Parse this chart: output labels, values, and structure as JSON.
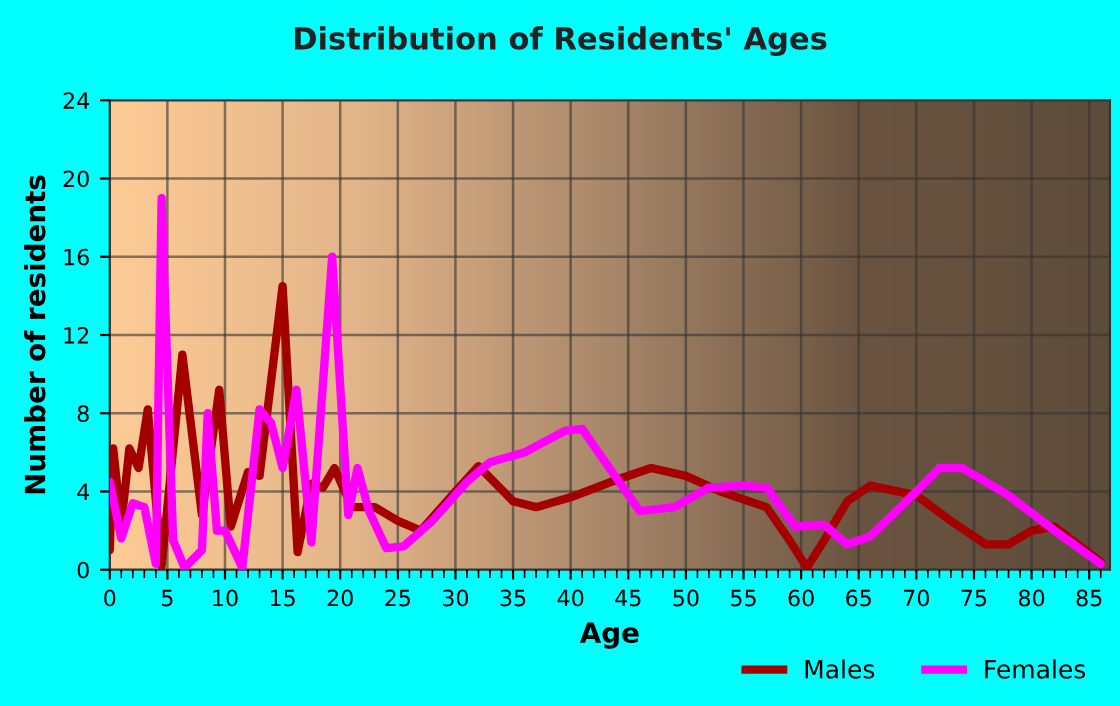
{
  "chart_data": {
    "type": "line",
    "title": "Distribution of Residents' Ages",
    "xlabel": "Age",
    "ylabel": "Number of residents",
    "xlim": [
      0,
      86.8
    ],
    "xticks": [
      0,
      5,
      10,
      15,
      20,
      25,
      30,
      35,
      40,
      45,
      50,
      55,
      60,
      65,
      70,
      75,
      80,
      85
    ],
    "ylim": [
      0,
      24
    ],
    "yticks": [
      0,
      4,
      8,
      12,
      16,
      20,
      24
    ],
    "grid": true,
    "legend": "bottom right",
    "line_style": "solid",
    "series": [
      {
        "name": "Males",
        "color": "#a50000",
        "x": [
          0,
          0.3,
          1,
          1.7,
          2.5,
          3.3,
          4.5,
          6.3,
          8,
          9.5,
          10.5,
          12,
          13,
          15,
          16.3,
          17.5,
          18.5,
          19.5,
          21,
          23,
          25,
          27,
          30,
          32,
          35,
          37,
          40,
          44,
          47,
          50,
          53,
          57,
          59,
          60.5,
          62,
          64,
          66,
          70,
          73,
          76,
          78,
          80,
          82,
          84,
          86
        ],
        "values": [
          1,
          6.2,
          2.3,
          6.2,
          5.2,
          8.2,
          0.2,
          11,
          2.8,
          9.2,
          2.2,
          5,
          4.8,
          14.5,
          0.9,
          4.4,
          4.2,
          5.2,
          3.2,
          3.2,
          2.5,
          2,
          4,
          5.3,
          3.5,
          3.2,
          3.7,
          4.6,
          5.2,
          4.8,
          4,
          3.2,
          1.5,
          0.1,
          1.5,
          3.5,
          4.3,
          3.8,
          2.5,
          1.3,
          1.3,
          2,
          2.2,
          1.3,
          0.4
        ]
      },
      {
        "name": "Females",
        "color": "#ff00ff",
        "x": [
          0,
          1,
          2,
          3,
          4,
          4.5,
          5.5,
          6.5,
          8,
          8.5,
          9.3,
          10,
          11.5,
          13,
          14,
          15,
          16.2,
          17.5,
          19.3,
          20.7,
          21.5,
          22.5,
          24,
          25.5,
          28,
          31,
          33,
          36,
          39.5,
          41,
          43,
          46,
          49,
          52,
          55,
          57,
          59.5,
          62,
          64,
          66,
          70,
          72,
          74,
          78,
          82,
          86
        ],
        "values": [
          4.5,
          1.6,
          3.4,
          3.2,
          0.3,
          19,
          1.5,
          0.1,
          1,
          8,
          2,
          2,
          0.1,
          8.2,
          7.5,
          5.2,
          9.2,
          1.4,
          16,
          2.8,
          5.2,
          3,
          1.1,
          1.2,
          2.5,
          4.5,
          5.5,
          6,
          7.1,
          7.2,
          5.5,
          3,
          3.2,
          4.2,
          4.3,
          4.2,
          2.2,
          2.3,
          1.3,
          1.7,
          4,
          5.2,
          5.2,
          3.8,
          2,
          0.3
        ]
      }
    ]
  }
}
